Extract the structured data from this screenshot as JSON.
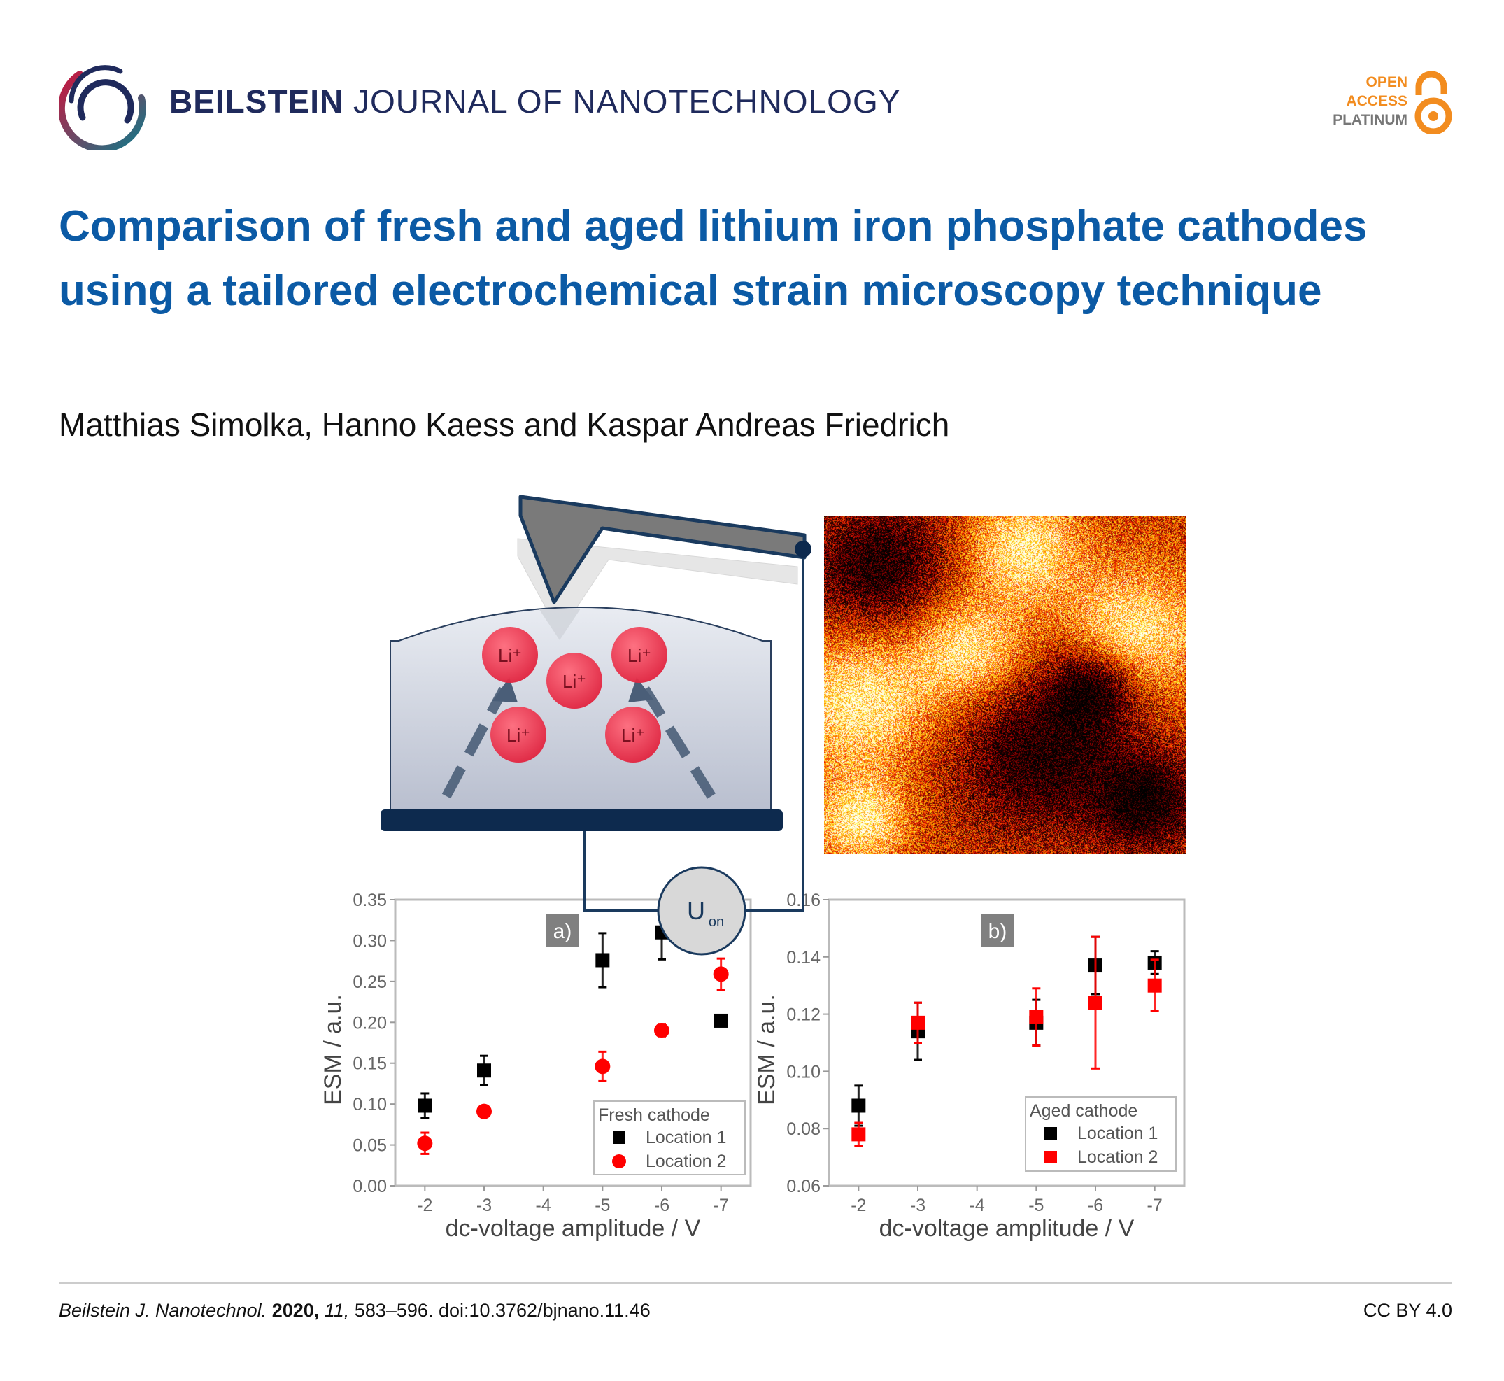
{
  "header": {
    "journal_bold": "BEILSTEIN",
    "journal_rest": " JOURNAL OF NANOTECHNOLOGY",
    "badge": {
      "line1": "OPEN",
      "line2": "ACCESS",
      "line3": "PLATINUM",
      "icon": "open-lock-icon"
    },
    "colors": {
      "navy": "#1f2a5c",
      "orange": "#f28c1f",
      "gray": "#777777"
    }
  },
  "article": {
    "title": "Comparison of fresh and aged lithium iron phosphate cathodes using a tailored electrochemical strain microscopy technique",
    "authors": "Matthias Simolka, Hanno Kaess and Kaspar Andreas Friedrich",
    "title_color": "#0b5aa5"
  },
  "figure": {
    "ion_label": "Li⁺",
    "voltage_label": "U",
    "voltage_sub": "on",
    "colors": {
      "ion": "#e8344a",
      "wire": "#1a3a5e",
      "base": "#0d2a4e",
      "cantilever": "#7a7a7a"
    }
  },
  "chart_data": [
    {
      "type": "scatter",
      "panel_label": "a)",
      "xlabel": "dc-voltage amplitude / V",
      "ylabel": "ESM / a.u.",
      "categories": [
        "-2",
        "-3",
        "-4",
        "-5",
        "-6",
        "-7"
      ],
      "ylim": [
        0,
        0.35
      ],
      "yticks": [
        "0.00",
        "0.05",
        "0.10",
        "0.15",
        "0.20",
        "0.25",
        "0.30",
        "0.35"
      ],
      "legend_title": "Fresh cathode",
      "legend_position": "bottom-right",
      "series": [
        {
          "name": "Location 1",
          "marker": "square",
          "color": "#000000",
          "x": [
            "-2",
            "-3",
            "-5",
            "-6",
            "-7"
          ],
          "values": [
            0.098,
            0.141,
            0.276,
            0.31,
            0.202
          ],
          "err": [
            0.015,
            0.018,
            0.033,
            0.033,
            0.004
          ]
        },
        {
          "name": "Location 2",
          "marker": "circle",
          "color": "#ff0000",
          "x": [
            "-2",
            "-3",
            "-5",
            "-6",
            "-7"
          ],
          "values": [
            0.052,
            0.091,
            0.146,
            0.19,
            0.259
          ],
          "err": [
            0.013,
            0.003,
            0.018,
            0.008,
            0.019
          ]
        }
      ]
    },
    {
      "type": "scatter",
      "panel_label": "b)",
      "xlabel": "dc-voltage amplitude / V",
      "ylabel": "ESM / a.u.",
      "categories": [
        "-2",
        "-3",
        "-4",
        "-5",
        "-6",
        "-7"
      ],
      "ylim": [
        0.06,
        0.16
      ],
      "yticks": [
        "0.06",
        "0.08",
        "0.10",
        "0.12",
        "0.14",
        "0.16"
      ],
      "legend_title": "Aged cathode",
      "legend_position": "bottom-right",
      "series": [
        {
          "name": "Location 1",
          "marker": "square",
          "color": "#000000",
          "x": [
            "-2",
            "-3",
            "-5",
            "-6",
            "-7"
          ],
          "values": [
            0.088,
            0.114,
            0.117,
            0.137,
            0.138
          ],
          "err": [
            0.007,
            0.01,
            0.008,
            0.01,
            0.004
          ]
        },
        {
          "name": "Location 2",
          "marker": "square",
          "color": "#ff0000",
          "x": [
            "-2",
            "-3",
            "-5",
            "-6",
            "-7"
          ],
          "values": [
            0.078,
            0.117,
            0.119,
            0.124,
            0.13
          ],
          "err": [
            0.004,
            0.007,
            0.01,
            0.023,
            0.009
          ]
        }
      ]
    }
  ],
  "footer": {
    "journal_abbrev": "Beilstein J. Nanotechnol.",
    "year": "2020,",
    "volume": "11,",
    "pages_doi": "583–596. doi:10.3762/bjnano.11.46",
    "license": "CC BY 4.0"
  }
}
